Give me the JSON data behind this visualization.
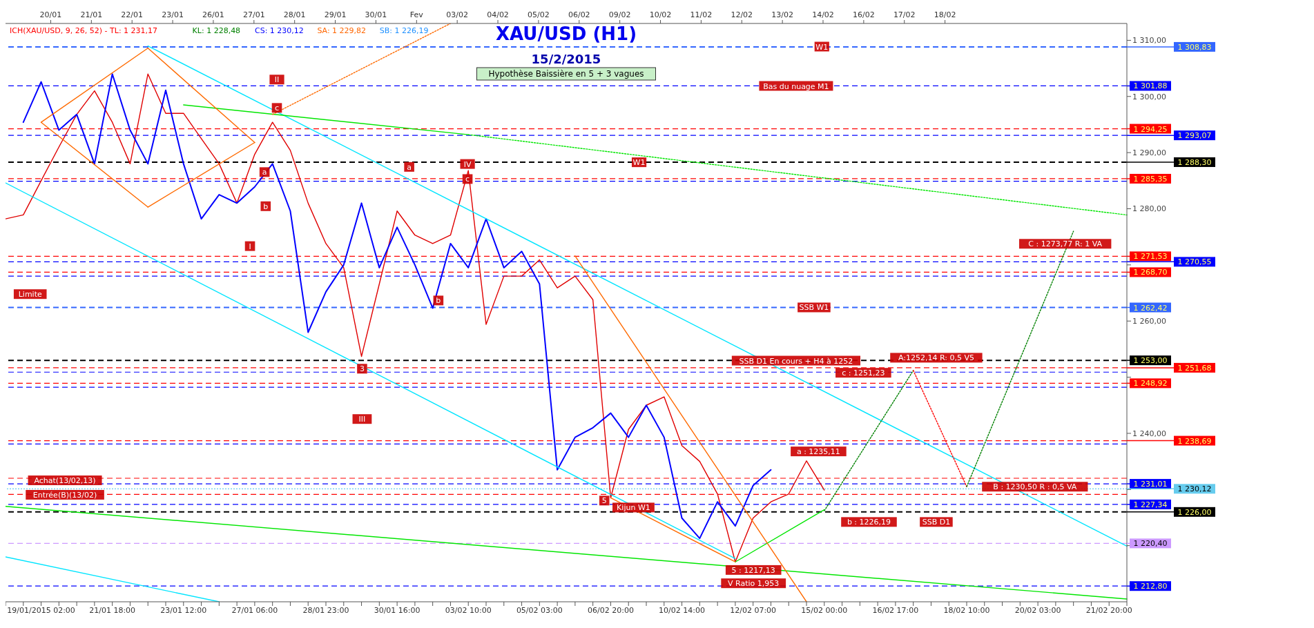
{
  "chart_data": {
    "type": "line",
    "title": "XAU/USD (H1)",
    "subtitle": "15/2/2015",
    "categories": [
      null,
      null,
      "19/01/2015 02:00",
      null,
      null,
      null,
      "21/01 18:00",
      null,
      null,
      null,
      "23/01 12:00",
      null,
      null,
      null,
      "27/01 06:00",
      null,
      null,
      null,
      "28/01 23:00",
      null,
      null,
      null,
      "30/01 16:00",
      null,
      null,
      null,
      "03/02 10:00",
      null,
      null,
      null,
      "05/02 03:00",
      null,
      null,
      null,
      "06/02 20:00",
      null,
      null,
      null,
      "10/02 14:00",
      null,
      null,
      null,
      "12/02 07:00",
      null,
      null,
      null,
      "15/02 00:00",
      null,
      null,
      null,
      "16/02 17:00",
      null,
      null,
      null,
      "18/02 10:00",
      null,
      null,
      null,
      "20/02 03:00",
      null,
      null,
      null,
      "21/02 20:00",
      null
    ],
    "ylim": [
      1210,
      1313
    ],
    "yticks": [
      {
        "value": 1220,
        "label": null
      },
      {
        "value": 1230,
        "label": null
      },
      {
        "value": 1240,
        "label": "1 240,00"
      },
      {
        "value": 1250,
        "label": null
      },
      {
        "value": 1260,
        "label": "1 260,00"
      },
      {
        "value": 1270,
        "label": null
      },
      {
        "value": 1280,
        "label": "1 280,00"
      },
      {
        "value": 1290,
        "label": "1 290,00"
      },
      {
        "value": 1300,
        "label": "1 300,00"
      },
      {
        "value": 1310,
        "label": "1 310,00"
      }
    ],
    "grid": false,
    "legend": false,
    "series": [
      {
        "type": "line",
        "color": "#e00000",
        "line_style": "solid",
        "values": [
          1278.2,
          1278.9,
          1285.0,
          1291.0,
          1296.8,
          1301.0,
          1295.4,
          1288.0,
          1304.0,
          1297.0,
          1297.0,
          1292.5,
          1288.0,
          1281.0,
          1289.7,
          1295.4,
          1290.4,
          1281.0,
          1273.8,
          1269.5,
          1253.7,
          1266.6,
          1279.6,
          1275.3,
          1273.8,
          1275.3,
          1286.8,
          1259.4,
          1268.0,
          1268.0,
          1270.9,
          1265.9,
          1268.0,
          1263.8,
          1228.5,
          1240.7,
          1245.0,
          1246.5,
          1237.8,
          1235.0,
          1229.2,
          1217.1,
          1224.9,
          1227.8,
          1229.2,
          1235.1,
          1229.9,
          null,
          null,
          null,
          null,
          null,
          null,
          null,
          null,
          null,
          null,
          null,
          null,
          null,
          null,
          null,
          null,
          null
        ]
      },
      {
        "type": "line",
        "color": "#0000ff",
        "line_style": "solid",
        "values": [
          null,
          1295.4,
          1302.6,
          1294.0,
          1296.8,
          1288.0,
          1304.0,
          1294.0,
          1288.0,
          1301.1,
          1288.0,
          1278.2,
          1282.5,
          1281.0,
          1283.9,
          1288.0,
          1279.6,
          1258.0,
          1265.2,
          1270.0,
          1281.0,
          1269.5,
          1276.7,
          1270.0,
          1262.3,
          1273.8,
          1269.5,
          1278.2,
          1269.5,
          1272.4,
          1266.6,
          1233.5,
          1239.3,
          1241.0,
          1243.6,
          1239.3,
          1245.0,
          1239.3,
          1224.9,
          1221.3,
          1227.8,
          1223.5,
          1230.7,
          1233.5,
          null,
          null,
          null,
          null,
          null,
          null,
          null,
          null,
          null,
          null,
          null,
          null,
          null,
          null,
          null,
          null,
          null,
          null,
          null,
          null
        ]
      },
      {
        "type": "line",
        "color": "#00e5ff",
        "line_style": "solid",
        "values": [
          null,
          null,
          null,
          null,
          null,
          null,
          null,
          null,
          1309.0,
          null,
          null,
          null,
          null,
          null,
          null,
          null,
          null,
          null,
          null,
          null,
          null,
          null,
          null,
          null,
          null,
          null,
          null,
          null,
          null,
          null,
          null,
          null,
          null,
          null,
          null,
          null,
          null,
          null,
          null,
          null,
          null,
          null,
          null,
          null,
          null,
          null,
          null,
          null,
          null,
          null,
          null,
          null,
          null,
          null,
          null,
          null,
          null,
          null,
          null,
          null,
          null,
          null,
          null,
          1219.9
        ]
      },
      {
        "type": "line",
        "color": "#00e5ff",
        "line_style": "solid",
        "values": [
          1284.6,
          null,
          null,
          null,
          null,
          null,
          null,
          null,
          null,
          null,
          null,
          null,
          null,
          null,
          null,
          null,
          null,
          null,
          null,
          null,
          null,
          null,
          null,
          null,
          null,
          null,
          null,
          null,
          null,
          null,
          null,
          null,
          null,
          null,
          null,
          null,
          null,
          null,
          null,
          null,
          null,
          1217.7,
          null,
          null,
          null,
          null,
          null,
          null,
          null,
          null,
          null,
          null,
          null,
          null,
          null,
          null,
          null,
          null,
          null,
          null,
          null,
          null,
          null,
          null
        ]
      },
      {
        "type": "line",
        "color": "#00e5ff",
        "line_style": "solid",
        "values": [
          1218.0,
          null,
          null,
          null,
          null,
          null,
          null,
          null,
          null,
          null,
          null,
          null,
          1210.0,
          null,
          null,
          null,
          null,
          null,
          null,
          null,
          null,
          null,
          null,
          null,
          null,
          null,
          null,
          null,
          null,
          null,
          null,
          null,
          null,
          null,
          null,
          null,
          null,
          null,
          null,
          null,
          null,
          null,
          null,
          null,
          null,
          null,
          null,
          null,
          null,
          null,
          null,
          null,
          null,
          null,
          null,
          null,
          null,
          null,
          null,
          null,
          null,
          null,
          null,
          null
        ]
      },
      {
        "type": "line",
        "color": "#00e600",
        "line_style": "solid",
        "values": [
          null,
          null,
          null,
          null,
          null,
          null,
          null,
          null,
          null,
          null,
          1298.5,
          null,
          null,
          null,
          null,
          null,
          null,
          null,
          null,
          null,
          null,
          null,
          null,
          null,
          null,
          null,
          1293.2,
          null,
          null,
          null,
          null,
          null,
          null,
          null,
          null,
          null,
          null,
          null,
          null,
          null,
          null,
          null,
          null,
          null,
          null,
          null,
          null,
          null,
          null,
          null,
          null,
          null,
          null,
          null,
          null,
          null,
          null,
          null,
          null,
          null,
          null,
          null,
          null,
          null
        ]
      },
      {
        "type": "line",
        "color": "#00e600",
        "line_style": "dotted",
        "values": [
          null,
          null,
          null,
          null,
          null,
          null,
          null,
          null,
          null,
          null,
          null,
          null,
          null,
          null,
          null,
          null,
          null,
          null,
          null,
          null,
          null,
          null,
          null,
          null,
          null,
          null,
          1293.2,
          null,
          null,
          null,
          null,
          null,
          null,
          null,
          null,
          null,
          null,
          null,
          null,
          null,
          null,
          null,
          null,
          null,
          null,
          null,
          null,
          null,
          null,
          null,
          null,
          null,
          null,
          null,
          null,
          null,
          null,
          null,
          null,
          null,
          null,
          null,
          null,
          1278.9
        ]
      },
      {
        "type": "line",
        "color": "#00e600",
        "line_style": "solid",
        "values": [
          1227.0,
          null,
          null,
          null,
          null,
          null,
          null,
          null,
          null,
          null,
          null,
          null,
          null,
          null,
          null,
          null,
          null,
          null,
          null,
          null,
          null,
          null,
          null,
          null,
          null,
          null,
          null,
          null,
          null,
          null,
          null,
          null,
          null,
          null,
          null,
          null,
          null,
          null,
          null,
          null,
          null,
          null,
          null,
          null,
          null,
          null,
          null,
          null,
          null,
          null,
          null,
          null,
          null,
          null,
          null,
          null,
          null,
          null,
          null,
          null,
          null,
          null,
          null,
          1210.5
        ]
      },
      {
        "type": "line",
        "color": "#00e600",
        "line_style": "solid",
        "values": [
          null,
          null,
          null,
          null,
          null,
          null,
          null,
          null,
          null,
          null,
          null,
          null,
          null,
          null,
          null,
          null,
          null,
          null,
          null,
          null,
          null,
          null,
          null,
          null,
          null,
          null,
          null,
          null,
          null,
          null,
          null,
          null,
          null,
          null,
          null,
          null,
          null,
          null,
          null,
          null,
          null,
          1217.1,
          null,
          null,
          null,
          null,
          1226.4,
          null,
          null,
          null,
          null,
          null,
          null,
          null,
          null,
          null,
          null,
          null,
          null,
          null,
          null,
          null,
          null,
          null
        ]
      },
      {
        "type": "line",
        "color": "#ff6a00",
        "line_style": "solid",
        "values": [
          null,
          null,
          1295.4,
          null,
          null,
          null,
          null,
          null,
          1308.6,
          null,
          null,
          null,
          null,
          null,
          null,
          null,
          null,
          null,
          null,
          null,
          null,
          null,
          null,
          null,
          null,
          null,
          null,
          null,
          null,
          null,
          null,
          null,
          null,
          null,
          null,
          null,
          null,
          null,
          null,
          null,
          null,
          null,
          null,
          null,
          null,
          null,
          null,
          null,
          null,
          null,
          null,
          null,
          null,
          null,
          null,
          null,
          null,
          null,
          null,
          null,
          null,
          null,
          null,
          null
        ]
      },
      {
        "type": "line",
        "color": "#ff6a00",
        "line_style": "solid",
        "values": [
          null,
          null,
          null,
          null,
          null,
          null,
          null,
          null,
          1308.6,
          null,
          null,
          null,
          null,
          null,
          1291.8,
          null,
          null,
          null,
          null,
          null,
          null,
          null,
          null,
          null,
          null,
          null,
          null,
          null,
          null,
          null,
          null,
          null,
          null,
          null,
          null,
          null,
          null,
          null,
          null,
          null,
          null,
          null,
          null,
          null,
          null,
          null,
          null,
          null,
          null,
          null,
          null,
          null,
          null,
          null,
          null,
          null,
          null,
          null,
          null,
          null,
          null,
          null,
          null,
          null
        ]
      },
      {
        "type": "line",
        "color": "#ff6a00",
        "line_style": "solid",
        "values": [
          null,
          null,
          1295.4,
          null,
          null,
          null,
          null,
          null,
          1280.3,
          null,
          null,
          null,
          null,
          null,
          null,
          null,
          null,
          null,
          null,
          null,
          null,
          null,
          null,
          null,
          null,
          null,
          null,
          null,
          null,
          null,
          null,
          null,
          null,
          null,
          null,
          null,
          null,
          null,
          null,
          null,
          null,
          null,
          null,
          null,
          null,
          null,
          null,
          null,
          null,
          null,
          null,
          null,
          null,
          null,
          null,
          null,
          null,
          null,
          null,
          null,
          null,
          null,
          null,
          null
        ]
      },
      {
        "type": "line",
        "color": "#ff6a00",
        "line_style": "solid",
        "values": [
          null,
          null,
          null,
          null,
          null,
          null,
          null,
          null,
          1280.3,
          null,
          null,
          null,
          null,
          null,
          1291.8,
          null,
          null,
          null,
          null,
          null,
          null,
          null,
          null,
          null,
          null,
          null,
          null,
          null,
          null,
          null,
          null,
          null,
          null,
          null,
          null,
          null,
          null,
          null,
          null,
          null,
          null,
          null,
          null,
          null,
          null,
          null,
          null,
          null,
          null,
          null,
          null,
          null,
          null,
          null,
          null,
          null,
          null,
          null,
          null,
          null,
          null,
          null,
          null,
          null
        ]
      },
      {
        "type": "line",
        "color": "#ff6a00",
        "line_style": "dotted",
        "values": [
          null,
          null,
          null,
          null,
          null,
          null,
          null,
          null,
          null,
          null,
          null,
          null,
          null,
          null,
          null,
          1296.8,
          null,
          null,
          null,
          null,
          null,
          null,
          null,
          null,
          null,
          1313.0,
          null,
          null,
          null,
          null,
          null,
          null,
          null,
          null,
          null,
          null,
          null,
          null,
          null,
          null,
          null,
          null,
          null,
          null,
          null,
          null,
          null,
          null,
          null,
          null,
          null,
          null,
          null,
          null,
          null,
          null,
          null,
          null,
          null,
          null,
          null,
          null,
          null,
          null
        ]
      },
      {
        "type": "line",
        "color": "#ff6a00",
        "line_style": "solid",
        "values": [
          null,
          null,
          null,
          null,
          null,
          null,
          null,
          null,
          null,
          null,
          null,
          null,
          null,
          null,
          null,
          null,
          null,
          null,
          null,
          null,
          null,
          null,
          null,
          null,
          null,
          null,
          null,
          null,
          null,
          null,
          null,
          null,
          1271.6,
          null,
          null,
          null,
          null,
          null,
          null,
          null,
          null,
          null,
          null,
          null,
          null,
          1210.0,
          null,
          null,
          null,
          null,
          null,
          null,
          null,
          null,
          null,
          null,
          null,
          null,
          null,
          null,
          null,
          null,
          null,
          null
        ]
      },
      {
        "type": "line",
        "color": "#ff6a00",
        "line_style": "solid",
        "values": [
          null,
          null,
          null,
          null,
          null,
          null,
          null,
          null,
          null,
          null,
          null,
          null,
          null,
          null,
          null,
          null,
          null,
          null,
          null,
          null,
          null,
          null,
          null,
          null,
          null,
          null,
          null,
          null,
          null,
          null,
          null,
          null,
          null,
          null,
          1228.5,
          null,
          null,
          null,
          null,
          null,
          null,
          1217.1,
          null,
          null,
          null,
          null,
          null,
          null,
          null,
          null,
          null,
          null,
          null,
          null,
          null,
          null,
          null,
          null,
          null,
          null,
          null,
          null,
          null,
          null
        ]
      },
      {
        "type": "line",
        "color": "#008000",
        "line_style": "dotted",
        "values": [
          null,
          null,
          null,
          null,
          null,
          null,
          null,
          null,
          null,
          null,
          null,
          null,
          null,
          null,
          null,
          null,
          null,
          null,
          null,
          null,
          null,
          null,
          null,
          null,
          null,
          null,
          null,
          null,
          null,
          null,
          null,
          null,
          null,
          null,
          null,
          null,
          null,
          null,
          null,
          null,
          null,
          null,
          null,
          null,
          null,
          null,
          1226.2,
          null,
          null,
          null,
          null,
          1251.2,
          null,
          null,
          null,
          null,
          null,
          null,
          null,
          null,
          null,
          null,
          null,
          null
        ]
      },
      {
        "type": "line",
        "color": "#ff0000",
        "line_style": "dotted",
        "values": [
          null,
          null,
          null,
          null,
          null,
          null,
          null,
          null,
          null,
          null,
          null,
          null,
          null,
          null,
          null,
          null,
          null,
          null,
          null,
          null,
          null,
          null,
          null,
          null,
          null,
          null,
          null,
          null,
          null,
          null,
          null,
          null,
          null,
          null,
          null,
          null,
          null,
          null,
          null,
          null,
          null,
          null,
          null,
          null,
          null,
          null,
          null,
          null,
          null,
          null,
          null,
          1251.2,
          null,
          null,
          1230.5,
          null,
          null,
          null,
          null,
          null,
          null,
          null,
          null,
          null
        ]
      },
      {
        "type": "line",
        "color": "#008000",
        "line_style": "dotted",
        "values": [
          null,
          null,
          null,
          null,
          null,
          null,
          null,
          null,
          null,
          null,
          null,
          null,
          null,
          null,
          null,
          null,
          null,
          null,
          null,
          null,
          null,
          null,
          null,
          null,
          null,
          null,
          null,
          null,
          null,
          null,
          null,
          null,
          null,
          null,
          null,
          null,
          null,
          null,
          null,
          null,
          null,
          null,
          null,
          null,
          null,
          null,
          null,
          null,
          null,
          null,
          null,
          null,
          null,
          null,
          1230.5,
          null,
          null,
          null,
          null,
          null,
          1276.0,
          null,
          null,
          null
        ]
      }
    ],
    "ref_lines": [
      {
        "axis": "y",
        "value": 1308.83,
        "label": "1 308,83",
        "color": "#3366ff",
        "line_style": "dashed"
      },
      {
        "axis": "y",
        "value": 1301.88,
        "label": "1 301,88",
        "color": "#0000ff",
        "line_style": "dashed"
      },
      {
        "axis": "y",
        "value": 1294.25,
        "label": "1 294,25",
        "color": "#ff0000",
        "line_style": "dashed"
      },
      {
        "axis": "y",
        "value": 1293.07,
        "label": "1 293,07",
        "color": "#0000ff",
        "line_style": "dashed"
      },
      {
        "axis": "y",
        "value": 1288.3,
        "label": "1 288,30",
        "color": "#000000",
        "line_style": "dashed"
      },
      {
        "axis": "y",
        "value": 1285.35,
        "label": "1 285,35",
        "color": "#ff0000",
        "line_style": "dashed"
      },
      {
        "axis": "y",
        "value": 1284.9,
        "label": null,
        "color": "#0000ff",
        "line_style": "dashed"
      },
      {
        "axis": "y",
        "value": 1271.53,
        "label": "1 271,53",
        "color": "#ff0000",
        "line_style": "dashed"
      },
      {
        "axis": "y",
        "value": 1270.55,
        "label": "1 270,55",
        "color": "#0000ff",
        "line_style": "dashed"
      },
      {
        "axis": "y",
        "value": 1268.7,
        "label": "1 268,70",
        "color": "#ff0000",
        "line_style": "dashed"
      },
      {
        "axis": "y",
        "value": 1268.0,
        "label": null,
        "color": "#0000ff",
        "line_style": "dashed"
      },
      {
        "axis": "y",
        "value": 1262.42,
        "label": "1 262,42",
        "color": "#3366ff",
        "line_style": "dashed"
      },
      {
        "axis": "y",
        "value": 1253.0,
        "label": "1 253,00",
        "color": "#000000",
        "line_style": "dashed"
      },
      {
        "axis": "y",
        "value": 1251.68,
        "label": "1 251,68",
        "color": "#ff0000",
        "line_style": "dashed"
      },
      {
        "axis": "y",
        "value": 1250.9,
        "label": null,
        "color": "#0000ff",
        "line_style": "dashed"
      },
      {
        "axis": "y",
        "value": 1248.92,
        "label": "1 248,92",
        "color": "#ff0000",
        "line_style": "dashed"
      },
      {
        "axis": "y",
        "value": 1248.2,
        "label": null,
        "color": "#0000ff",
        "line_style": "dashed"
      },
      {
        "axis": "y",
        "value": 1238.69,
        "label": "1 238,69",
        "color": "#ff0000",
        "line_style": "dashed"
      },
      {
        "axis": "y",
        "value": 1238.1,
        "label": null,
        "color": "#0000ff",
        "line_style": "dashed"
      },
      {
        "axis": "y",
        "value": 1232.0,
        "label": null,
        "color": "#ff0000",
        "line_style": "dashed"
      },
      {
        "axis": "y",
        "value": 1231.01,
        "label": "1 231,01",
        "color": "#0000ff",
        "line_style": "dashed"
      },
      {
        "axis": "y",
        "value": 1230.12,
        "label": "1 230,12",
        "color": "#66ccee",
        "line_style": "dotted"
      },
      {
        "axis": "y",
        "value": 1229.13,
        "label": null,
        "color": "#ff0000",
        "line_style": "dashed"
      },
      {
        "axis": "y",
        "value": 1227.34,
        "label": "1 227,34",
        "color": "#0000ff",
        "line_style": "dashed"
      },
      {
        "axis": "y",
        "value": 1226.0,
        "label": "1 226,00",
        "color": "#000000",
        "line_style": "dashed"
      },
      {
        "axis": "y",
        "value": 1220.4,
        "label": "1 220,40",
        "color": "#cc99ff",
        "line_style": "dashed"
      },
      {
        "axis": "y",
        "value": 1212.8,
        "label": "1 212,80",
        "color": "#0000ff",
        "line_style": "dashed"
      }
    ],
    "annotations": [
      "ICH(XAU/USD, 9, 26, 52) - TL: 1 231,17",
      "KL: 1 228,48",
      "CS: 1 230,12",
      "SA: 1 229,82",
      "SB: 1 226,19",
      "Hypothèse Baissière en 5 + 3 vagues",
      "20/01",
      "21/01",
      "22/01",
      "23/01",
      "26/01",
      "27/01",
      "28/01",
      "29/01",
      "30/01",
      "Fev",
      "03/02",
      "04/02",
      "05/02",
      "06/02",
      "09/02",
      "10/02",
      "11/02",
      "12/02",
      "13/02",
      "14/02",
      "16/02",
      "17/02",
      "18/02",
      "W1",
      "Bas du nuage M1",
      "W1",
      "SSB W1",
      "SSB D1 En cours + H4 à 1252",
      "A:1252,14 R: 0,5 V5",
      "c : 1251,23",
      "C : 1273,77 R: 1 VA",
      "a : 1235,11",
      "b : 1226,19",
      "SSB D1",
      "B : 1230,50 R : 0,5 VA",
      "5 : 1217,13",
      "V Ratio 1,953",
      "Kijun W1",
      "Limite",
      "Achat(13/02,13)",
      "Entrée(B)(13/02)",
      "I",
      "II",
      "III",
      "IV",
      "c",
      "a",
      "b",
      "a",
      "b",
      "c",
      "3",
      "5"
    ]
  }
}
